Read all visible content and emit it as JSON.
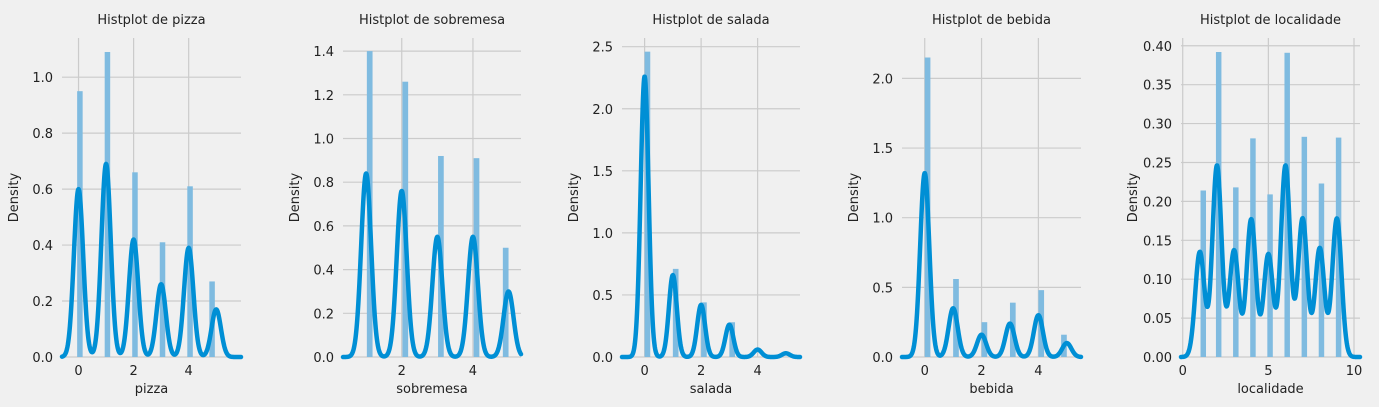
{
  "chart_data": [
    {
      "type": "bar",
      "title": "Histplot de pizza",
      "xlabel": "pizza",
      "ylabel": "Density",
      "xlim": [
        -0.6,
        5.9
      ],
      "ylim": [
        0,
        1.14
      ],
      "xticks": [
        0,
        2,
        4
      ],
      "xtick_labels": [
        "0",
        "2",
        "4"
      ],
      "yticks": [
        0,
        0.2,
        0.4,
        0.6,
        0.8,
        1.0
      ],
      "ytick_labels": [
        "0.0",
        "0.2",
        "0.4",
        "0.6",
        "0.8",
        "1.0"
      ],
      "bar_width": 0.2,
      "bars": [
        {
          "x": 0.05,
          "value": 0.95
        },
        {
          "x": 1.05,
          "value": 1.09
        },
        {
          "x": 2.05,
          "value": 0.66
        },
        {
          "x": 3.05,
          "value": 0.41
        },
        {
          "x": 4.05,
          "value": 0.61
        },
        {
          "x": 4.85,
          "value": 0.27
        }
      ],
      "kde_peaks": [
        {
          "x": 0,
          "value": 0.6
        },
        {
          "x": 1,
          "value": 0.69
        },
        {
          "x": 2,
          "value": 0.42
        },
        {
          "x": 3,
          "value": 0.26
        },
        {
          "x": 4,
          "value": 0.39
        },
        {
          "x": 5,
          "value": 0.17
        }
      ],
      "kde_sigma": 0.17,
      "grid": true,
      "bar_color": "#7fbbe0",
      "kde_color": "#008fd5"
    },
    {
      "type": "bar",
      "title": "Histplot de sobremesa",
      "xlabel": "sobremesa",
      "ylabel": "Density",
      "xlim": [
        0.35,
        5.35
      ],
      "ylim": [
        0,
        1.46
      ],
      "xticks": [
        2,
        4
      ],
      "xtick_labels": [
        "2",
        "4"
      ],
      "yticks": [
        0,
        0.2,
        0.4,
        0.6,
        0.8,
        1.0,
        1.2,
        1.4
      ],
      "ytick_labels": [
        "0.0",
        "0.2",
        "0.4",
        "0.6",
        "0.8",
        "1.0",
        "1.2",
        "1.4"
      ],
      "bar_width": 0.16,
      "bars": [
        {
          "x": 1.1,
          "value": 1.4
        },
        {
          "x": 2.1,
          "value": 1.26
        },
        {
          "x": 3.1,
          "value": 0.92
        },
        {
          "x": 4.1,
          "value": 0.91
        },
        {
          "x": 4.92,
          "value": 0.5
        }
      ],
      "kde_peaks": [
        {
          "x": 1,
          "value": 0.84
        },
        {
          "x": 2,
          "value": 0.76
        },
        {
          "x": 3,
          "value": 0.55
        },
        {
          "x": 4,
          "value": 0.55
        },
        {
          "x": 5,
          "value": 0.3
        }
      ],
      "kde_sigma": 0.14,
      "grid": true,
      "bar_color": "#7fbbe0",
      "kde_color": "#008fd5"
    },
    {
      "type": "bar",
      "title": "Histplot de salada",
      "xlabel": "salada",
      "ylabel": "Density",
      "xlim": [
        -0.8,
        5.5
      ],
      "ylim": [
        0,
        2.57
      ],
      "xticks": [
        0,
        2,
        4
      ],
      "xtick_labels": [
        "0",
        "2",
        "4"
      ],
      "yticks": [
        0,
        0.5,
        1.0,
        1.5,
        2.0,
        2.5
      ],
      "ytick_labels": [
        "0.0",
        "0.5",
        "1.0",
        "1.5",
        "2.0",
        "2.5"
      ],
      "bar_width": 0.2,
      "bars": [
        {
          "x": 0.1,
          "value": 2.46
        },
        {
          "x": 1.1,
          "value": 0.71
        },
        {
          "x": 2.1,
          "value": 0.44
        },
        {
          "x": 3.1,
          "value": 0.28
        }
      ],
      "kde_peaks": [
        {
          "x": 0,
          "value": 2.26
        },
        {
          "x": 1,
          "value": 0.66
        },
        {
          "x": 2,
          "value": 0.42
        },
        {
          "x": 3,
          "value": 0.26
        },
        {
          "x": 4,
          "value": 0.06
        },
        {
          "x": 5,
          "value": 0.03
        }
      ],
      "kde_sigma": 0.14,
      "grid": true,
      "bar_color": "#7fbbe0",
      "kde_color": "#008fd5"
    },
    {
      "type": "bar",
      "title": "Histplot de bebida",
      "xlabel": "bebida",
      "ylabel": "Density",
      "xlim": [
        -0.8,
        5.5
      ],
      "ylim": [
        0,
        2.29
      ],
      "xticks": [
        0,
        2,
        4
      ],
      "xtick_labels": [
        "0",
        "2",
        "4"
      ],
      "yticks": [
        0,
        0.5,
        1.0,
        1.5,
        2.0
      ],
      "ytick_labels": [
        "0.0",
        "0.5",
        "1.0",
        "1.5",
        "2.0"
      ],
      "bar_width": 0.2,
      "bars": [
        {
          "x": 0.1,
          "value": 2.15
        },
        {
          "x": 1.1,
          "value": 0.56
        },
        {
          "x": 2.1,
          "value": 0.25
        },
        {
          "x": 3.1,
          "value": 0.39
        },
        {
          "x": 4.1,
          "value": 0.48
        },
        {
          "x": 4.9,
          "value": 0.16
        }
      ],
      "kde_peaks": [
        {
          "x": 0,
          "value": 1.32
        },
        {
          "x": 1,
          "value": 0.35
        },
        {
          "x": 2,
          "value": 0.16
        },
        {
          "x": 3,
          "value": 0.24
        },
        {
          "x": 4,
          "value": 0.3
        },
        {
          "x": 5,
          "value": 0.1
        }
      ],
      "kde_sigma": 0.16,
      "grid": true,
      "bar_color": "#7fbbe0",
      "kde_color": "#008fd5"
    },
    {
      "type": "bar",
      "title": "Histplot de localidade",
      "xlabel": "localidade",
      "ylabel": "Density",
      "xlim": [
        -0.1,
        10.35
      ],
      "ylim": [
        0,
        0.41
      ],
      "xticks": [
        0,
        5,
        10
      ],
      "xtick_labels": [
        "0",
        "5",
        "10"
      ],
      "yticks": [
        0,
        0.05,
        0.1,
        0.15,
        0.2,
        0.25,
        0.3,
        0.35,
        0.4
      ],
      "ytick_labels": [
        "0.00",
        "0.05",
        "0.10",
        "0.15",
        "0.20",
        "0.25",
        "0.30",
        "0.35",
        "0.40"
      ],
      "bar_width": 0.32,
      "bars": [
        {
          "x": 1.2,
          "value": 0.214
        },
        {
          "x": 2.1,
          "value": 0.392
        },
        {
          "x": 3.1,
          "value": 0.218
        },
        {
          "x": 4.1,
          "value": 0.281
        },
        {
          "x": 5.1,
          "value": 0.209
        },
        {
          "x": 6.1,
          "value": 0.391
        },
        {
          "x": 7.1,
          "value": 0.283
        },
        {
          "x": 8.1,
          "value": 0.223
        },
        {
          "x": 9.1,
          "value": 0.282
        }
      ],
      "kde_peaks": [
        {
          "x": 1,
          "value": 0.135
        },
        {
          "x": 2,
          "value": 0.246
        },
        {
          "x": 3,
          "value": 0.137
        },
        {
          "x": 4,
          "value": 0.177
        },
        {
          "x": 5,
          "value": 0.132
        },
        {
          "x": 6,
          "value": 0.246
        },
        {
          "x": 7,
          "value": 0.178
        },
        {
          "x": 8,
          "value": 0.14
        },
        {
          "x": 9,
          "value": 0.178
        }
      ],
      "kde_sigma": 0.27,
      "grid": true,
      "bar_color": "#7fbbe0",
      "kde_color": "#008fd5"
    }
  ]
}
